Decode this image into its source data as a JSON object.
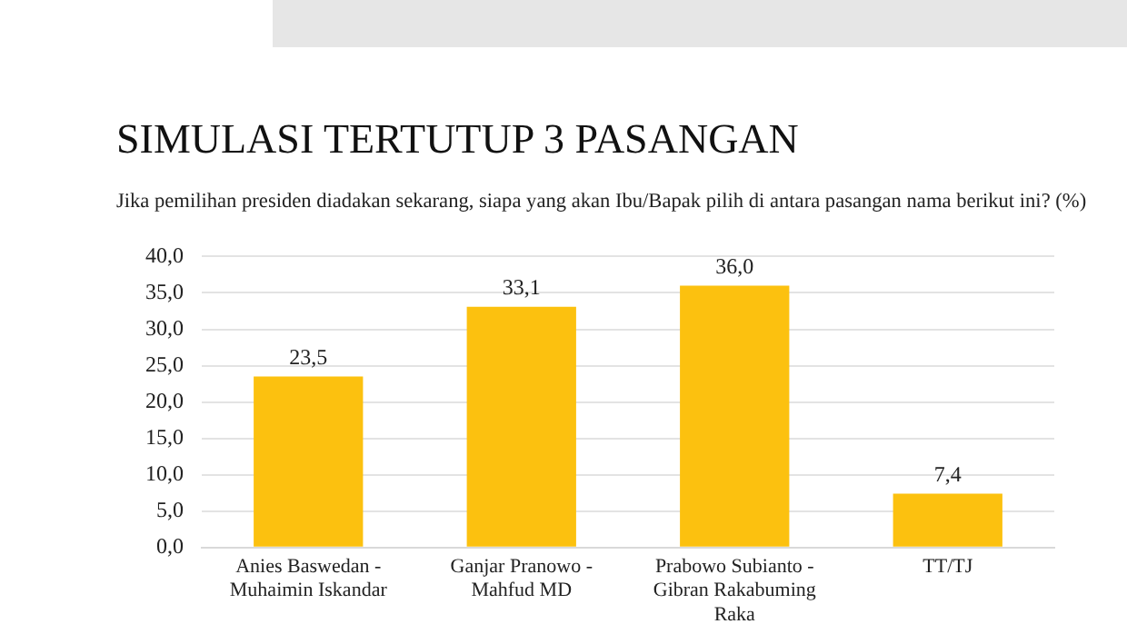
{
  "chart_data": {
    "type": "bar",
    "title": "SIMULASI TERTUTUP 3 PASANGAN",
    "subtitle": "Jika pemilihan presiden diadakan sekarang, siapa yang akan Ibu/Bapak pilih di antara pasangan nama berikut ini?  (%)",
    "categories": [
      "Anies Baswedan - Muhaimin Iskandar",
      "Ganjar Pranowo - Mahfud MD",
      "Prabowo Subianto - Gibran Rakabuming Raka",
      "TT/TJ"
    ],
    "values": [
      23.5,
      33.1,
      36.0,
      7.4
    ],
    "value_labels": [
      "23,5",
      "33,1",
      "36,0",
      "7,4"
    ],
    "color": "#fcc10f",
    "ylim": [
      0,
      40
    ],
    "yticks": [
      {
        "value": 0,
        "label": "0,0"
      },
      {
        "value": 5,
        "label": "5,0"
      },
      {
        "value": 10,
        "label": "10,0"
      },
      {
        "value": 15,
        "label": "15,0"
      },
      {
        "value": 20,
        "label": "20,0"
      },
      {
        "value": 25,
        "label": "25,0"
      },
      {
        "value": 30,
        "label": "30,0"
      },
      {
        "value": 35,
        "label": "35,0"
      },
      {
        "value": 40,
        "label": "40,0"
      }
    ],
    "grid": "y",
    "legend": false
  }
}
